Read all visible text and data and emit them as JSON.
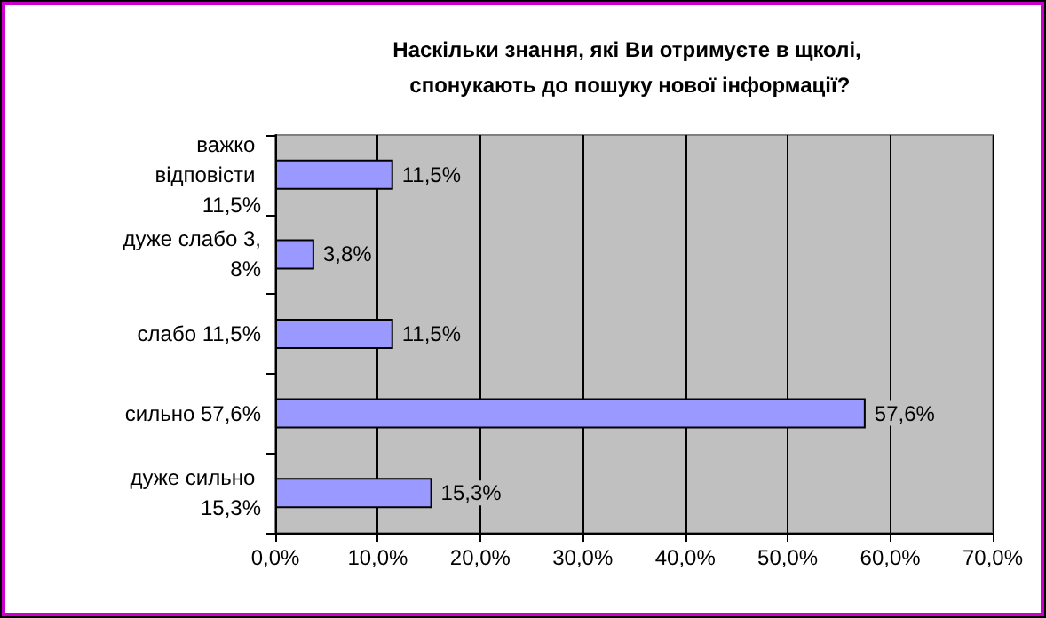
{
  "chart_data": {
    "type": "bar",
    "orientation": "horizontal",
    "title": "Наскільки знання, які Ви отримуєте в щколі, спонукають до пошуку нової інформації?",
    "categories": [
      "важко відповісти 11,5%",
      "дуже слабо 3,8%",
      "слабо 11,5%",
      "сильно 57,6%",
      "дуже сильно 15,3%"
    ],
    "values": [
      11.5,
      3.8,
      11.5,
      57.6,
      15.3
    ],
    "color": "#9999ff",
    "value_labels": [
      "11,5%",
      "3,8%",
      "11,5%",
      "57,6%",
      "15,3%"
    ],
    "xlim": [
      0,
      70
    ],
    "xticks": [
      {
        "value": 0,
        "label": "0,0%"
      },
      {
        "value": 10,
        "label": "10,0%"
      },
      {
        "value": 20,
        "label": "20,0%"
      },
      {
        "value": 30,
        "label": "30,0%"
      },
      {
        "value": 40,
        "label": "40,0%"
      },
      {
        "value": 50,
        "label": "50,0%"
      },
      {
        "value": 60,
        "label": "60,0%"
      },
      {
        "value": 70,
        "label": "70,0%"
      }
    ],
    "grid": "x"
  }
}
